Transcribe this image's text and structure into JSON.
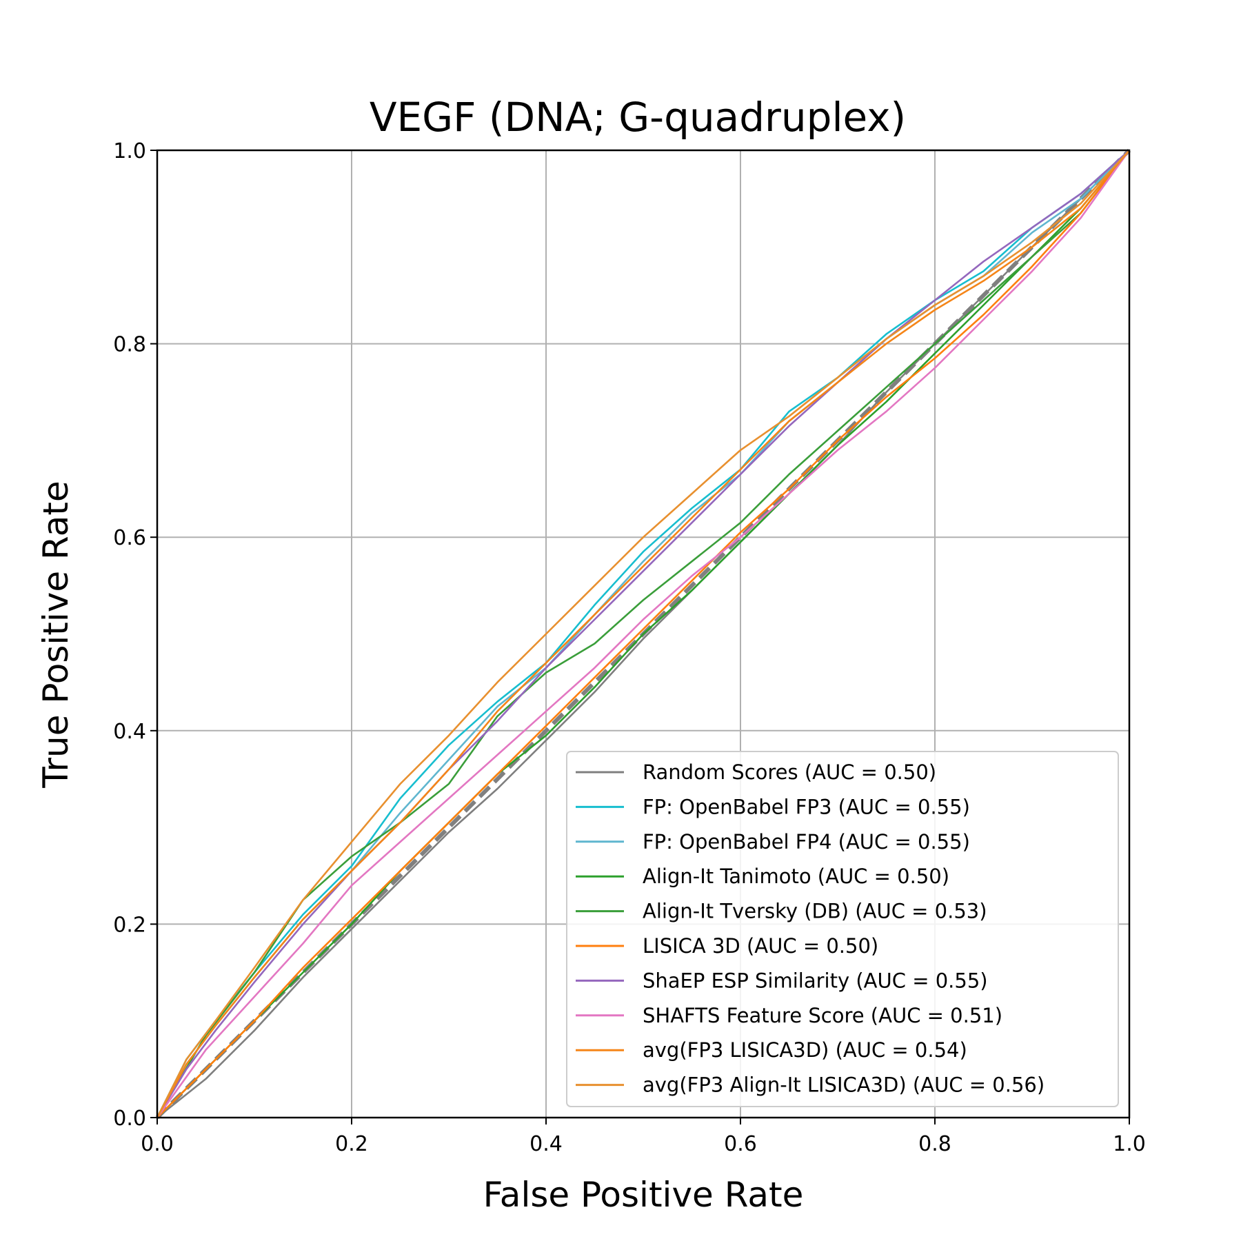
{
  "chart_data": {
    "type": "line",
    "title": "VEGF (DNA; G-quadruplex)",
    "xlabel": "False Positive Rate",
    "ylabel": "True Positive Rate",
    "xlim": [
      0,
      1
    ],
    "ylim": [
      0,
      1
    ],
    "xticks": [
      "0.0",
      "0.2",
      "0.4",
      "0.6",
      "0.8",
      "1.0"
    ],
    "yticks": [
      "0.0",
      "0.2",
      "0.4",
      "0.6",
      "0.8",
      "1.0"
    ],
    "grid": true,
    "legend_position": "lower-right",
    "diagonal": {
      "x": [
        0,
        1
      ],
      "y": [
        0,
        1
      ],
      "color": "#808080",
      "style": "dashed"
    },
    "series": [
      {
        "name": "Random Scores (AUC = 0.50)",
        "color": "#7f7f7f",
        "x": [
          0,
          0.05,
          0.1,
          0.15,
          0.2,
          0.25,
          0.3,
          0.35,
          0.4,
          0.45,
          0.5,
          0.55,
          0.6,
          0.65,
          0.7,
          0.75,
          0.8,
          0.85,
          0.9,
          0.95,
          1.0
        ],
        "y": [
          0,
          0.04,
          0.09,
          0.145,
          0.195,
          0.245,
          0.295,
          0.34,
          0.39,
          0.44,
          0.495,
          0.545,
          0.595,
          0.645,
          0.695,
          0.75,
          0.8,
          0.85,
          0.9,
          0.95,
          1.0
        ]
      },
      {
        "name": "FP: OpenBabel FP3 (AUC = 0.55)",
        "color": "#17becf",
        "x": [
          0,
          0.03,
          0.06,
          0.1,
          0.15,
          0.2,
          0.25,
          0.3,
          0.35,
          0.4,
          0.45,
          0.5,
          0.55,
          0.6,
          0.65,
          0.7,
          0.75,
          0.8,
          0.85,
          0.9,
          0.95,
          1.0
        ],
        "y": [
          0,
          0.06,
          0.1,
          0.15,
          0.21,
          0.26,
          0.33,
          0.385,
          0.43,
          0.47,
          0.53,
          0.585,
          0.63,
          0.67,
          0.73,
          0.765,
          0.81,
          0.845,
          0.875,
          0.92,
          0.955,
          1.0
        ]
      },
      {
        "name": "FP: OpenBabel FP4 (AUC = 0.55)",
        "color": "#5fb6cf",
        "x": [
          0,
          0.03,
          0.06,
          0.1,
          0.15,
          0.2,
          0.25,
          0.3,
          0.35,
          0.4,
          0.45,
          0.5,
          0.55,
          0.6,
          0.65,
          0.7,
          0.75,
          0.8,
          0.85,
          0.9,
          0.95,
          1.0
        ],
        "y": [
          0,
          0.055,
          0.095,
          0.145,
          0.205,
          0.255,
          0.315,
          0.37,
          0.425,
          0.465,
          0.52,
          0.575,
          0.625,
          0.665,
          0.72,
          0.76,
          0.805,
          0.84,
          0.87,
          0.915,
          0.95,
          1.0
        ]
      },
      {
        "name": "Align-It Tanimoto (AUC = 0.50)",
        "color": "#2ca02c",
        "x": [
          0,
          0.05,
          0.1,
          0.15,
          0.2,
          0.25,
          0.3,
          0.35,
          0.4,
          0.45,
          0.5,
          0.55,
          0.6,
          0.65,
          0.7,
          0.75,
          0.8,
          0.85,
          0.9,
          0.95,
          1.0
        ],
        "y": [
          0,
          0.05,
          0.1,
          0.15,
          0.2,
          0.255,
          0.305,
          0.355,
          0.395,
          0.445,
          0.5,
          0.545,
          0.595,
          0.645,
          0.695,
          0.74,
          0.79,
          0.84,
          0.89,
          0.94,
          1.0
        ]
      },
      {
        "name": "Align-It Tversky (DB) (AUC = 0.53)",
        "color": "#3a9e3a",
        "x": [
          0,
          0.05,
          0.1,
          0.15,
          0.2,
          0.25,
          0.3,
          0.35,
          0.4,
          0.45,
          0.5,
          0.55,
          0.6,
          0.65,
          0.7,
          0.75,
          0.8,
          0.85,
          0.9,
          0.95,
          1.0
        ],
        "y": [
          0,
          0.085,
          0.15,
          0.225,
          0.27,
          0.305,
          0.345,
          0.415,
          0.46,
          0.49,
          0.535,
          0.575,
          0.615,
          0.665,
          0.71,
          0.755,
          0.8,
          0.845,
          0.89,
          0.935,
          1.0
        ]
      },
      {
        "name": "LISICA 3D (AUC = 0.50)",
        "color": "#ff7f0e",
        "x": [
          0,
          0.05,
          0.1,
          0.15,
          0.2,
          0.25,
          0.3,
          0.35,
          0.4,
          0.45,
          0.5,
          0.55,
          0.6,
          0.65,
          0.7,
          0.75,
          0.8,
          0.85,
          0.9,
          0.95,
          1.0
        ],
        "y": [
          0,
          0.05,
          0.1,
          0.155,
          0.205,
          0.255,
          0.305,
          0.355,
          0.405,
          0.455,
          0.505,
          0.555,
          0.605,
          0.65,
          0.7,
          0.745,
          0.785,
          0.83,
          0.88,
          0.935,
          1.0
        ]
      },
      {
        "name": "ShaEP ESP Similarity (AUC = 0.55)",
        "color": "#9467bd",
        "x": [
          0,
          0.03,
          0.06,
          0.1,
          0.15,
          0.2,
          0.25,
          0.3,
          0.35,
          0.4,
          0.45,
          0.5,
          0.55,
          0.6,
          0.65,
          0.7,
          0.75,
          0.8,
          0.85,
          0.9,
          0.95,
          1.0
        ],
        "y": [
          0,
          0.05,
          0.09,
          0.14,
          0.2,
          0.255,
          0.305,
          0.36,
          0.41,
          0.465,
          0.515,
          0.565,
          0.615,
          0.665,
          0.715,
          0.76,
          0.805,
          0.845,
          0.885,
          0.92,
          0.955,
          1.0
        ]
      },
      {
        "name": "SHAFTS Feature Score (AUC = 0.51)",
        "color": "#e377c2",
        "x": [
          0,
          0.05,
          0.1,
          0.15,
          0.2,
          0.25,
          0.3,
          0.35,
          0.4,
          0.45,
          0.5,
          0.55,
          0.6,
          0.65,
          0.7,
          0.75,
          0.8,
          0.85,
          0.9,
          0.95,
          1.0
        ],
        "y": [
          0,
          0.07,
          0.125,
          0.18,
          0.24,
          0.285,
          0.33,
          0.375,
          0.42,
          0.465,
          0.515,
          0.56,
          0.6,
          0.645,
          0.69,
          0.73,
          0.775,
          0.825,
          0.875,
          0.93,
          1.0
        ]
      },
      {
        "name": "avg(FP3 LISICA3D) (AUC = 0.54)",
        "color": "#f58518",
        "x": [
          0,
          0.03,
          0.06,
          0.1,
          0.15,
          0.2,
          0.25,
          0.3,
          0.35,
          0.4,
          0.45,
          0.5,
          0.55,
          0.6,
          0.65,
          0.7,
          0.75,
          0.8,
          0.85,
          0.9,
          0.95,
          1.0
        ],
        "y": [
          0,
          0.055,
          0.095,
          0.145,
          0.205,
          0.255,
          0.305,
          0.36,
          0.42,
          0.47,
          0.52,
          0.57,
          0.62,
          0.67,
          0.72,
          0.76,
          0.8,
          0.835,
          0.865,
          0.9,
          0.94,
          1.0
        ]
      },
      {
        "name": "avg(FP3 Align-It LISICA3D) (AUC = 0.56)",
        "color": "#e8902f",
        "x": [
          0,
          0.03,
          0.06,
          0.1,
          0.15,
          0.2,
          0.25,
          0.3,
          0.35,
          0.4,
          0.45,
          0.5,
          0.55,
          0.6,
          0.65,
          0.7,
          0.75,
          0.8,
          0.85,
          0.9,
          0.95,
          1.0
        ],
        "y": [
          0,
          0.06,
          0.1,
          0.155,
          0.225,
          0.285,
          0.345,
          0.395,
          0.45,
          0.5,
          0.55,
          0.6,
          0.645,
          0.69,
          0.725,
          0.765,
          0.805,
          0.84,
          0.87,
          0.905,
          0.945,
          1.0
        ]
      }
    ]
  }
}
